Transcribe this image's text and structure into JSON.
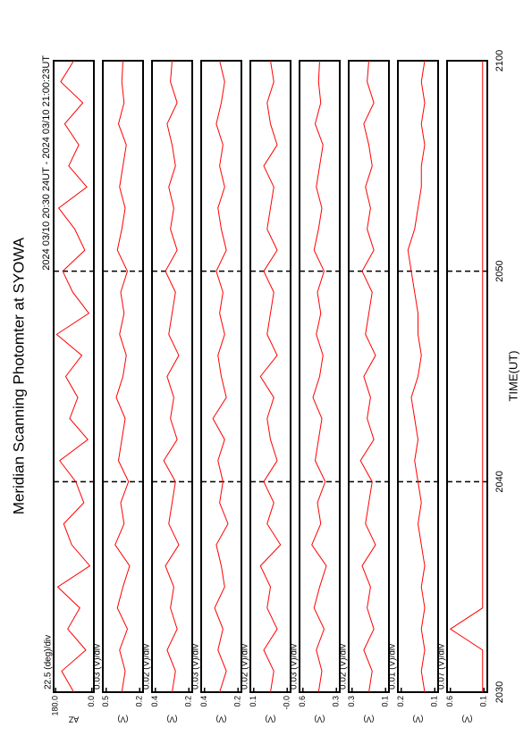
{
  "title": "Meridian Scanning Photomter at SYOWA",
  "time_range": "2024 03/10 20:30 24UT - 2024 03/10 21:00:23UT",
  "xlabel": "TIME(UT)",
  "xlim": [
    1230,
    1260
  ],
  "xticks": [
    {
      "value": 1230,
      "label": "2030"
    },
    {
      "value": 1240,
      "label": "2040"
    },
    {
      "value": 1250,
      "label": "2050"
    },
    {
      "value": 1260,
      "label": "2100"
    }
  ],
  "x": [
    1230,
    1231,
    1232,
    1233,
    1234,
    1235,
    1236,
    1237,
    1238,
    1239,
    1240,
    1241,
    1242,
    1243,
    1244,
    1245,
    1246,
    1247,
    1248,
    1249,
    1250,
    1251,
    1252,
    1253,
    1254,
    1255,
    1256,
    1257,
    1258,
    1259,
    1260
  ],
  "chart_data": [
    {
      "type": "line",
      "scale_label": "22.5 (deg)/div",
      "ylabel": "AZ",
      "ylim": [
        -10,
        190
      ],
      "yticks": [
        {
          "value": 180,
          "label": "180.0"
        },
        {
          "value": 0,
          "label": "0.0"
        }
      ],
      "series": [
        {
          "color": "#ff0000",
          "values": [
            90,
            150,
            30,
            120,
            60,
            170,
            10,
            100,
            140,
            40,
            80,
            160,
            20,
            110,
            70,
            130,
            50,
            175,
            15,
            95,
            145,
            35,
            85,
            165,
            25,
            115,
            65,
            135,
            45,
            155,
            90
          ]
        }
      ]
    },
    {
      "type": "line",
      "scale_label": "0.03 (V)/div",
      "ylabel": "(V)",
      "ylim": [
        0.17,
        0.53
      ],
      "yticks": [
        0.5,
        0.2
      ],
      "series": [
        {
          "color": "#ff0000",
          "values": [
            0.36,
            0.33,
            0.38,
            0.31,
            0.4,
            0.35,
            0.29,
            0.42,
            0.34,
            0.37,
            0.3,
            0.39,
            0.36,
            0.33,
            0.41,
            0.35,
            0.32,
            0.38,
            0.34,
            0.37,
            0.31,
            0.4,
            0.36,
            0.33,
            0.38,
            0.35,
            0.32,
            0.39,
            0.34,
            0.36,
            0.35
          ]
        }
      ]
    },
    {
      "type": "line",
      "scale_label": "0.02 (V)/div",
      "ylabel": "(V)",
      "ylim": [
        0.18,
        0.42
      ],
      "yticks": [
        0.4,
        0.2
      ],
      "series": [
        {
          "color": "#ff0000",
          "values": [
            0.3,
            0.28,
            0.33,
            0.27,
            0.31,
            0.29,
            0.34,
            0.26,
            0.32,
            0.3,
            0.28,
            0.35,
            0.27,
            0.31,
            0.29,
            0.33,
            0.26,
            0.32,
            0.3,
            0.28,
            0.34,
            0.27,
            0.31,
            0.29,
            0.32,
            0.28,
            0.3,
            0.33,
            0.27,
            0.31,
            0.3
          ]
        }
      ]
    },
    {
      "type": "line",
      "scale_label": "0.03 (V)/div",
      "ylabel": "(V)",
      "ylim": [
        0.18,
        0.42
      ],
      "yticks": [
        0.4,
        0.2
      ],
      "series": [
        {
          "color": "#ff0000",
          "values": [
            0.31,
            0.27,
            0.32,
            0.29,
            0.34,
            0.28,
            0.3,
            0.33,
            0.26,
            0.31,
            0.29,
            0.32,
            0.28,
            0.35,
            0.27,
            0.3,
            0.32,
            0.28,
            0.31,
            0.29,
            0.33,
            0.27,
            0.3,
            0.32,
            0.28,
            0.31,
            0.29,
            0.33,
            0.3,
            0.28,
            0.31
          ]
        }
      ]
    },
    {
      "type": "line",
      "scale_label": "0.02 (V)/div",
      "ylabel": "(V)",
      "ylim": [
        -0.01,
        0.11
      ],
      "yticks": [
        0.1,
        {
          "value": 0,
          "label": "-0.0"
        }
      ],
      "series": [
        {
          "color": "#ff0000",
          "values": [
            0.05,
            0.04,
            0.07,
            0.03,
            0.06,
            0.05,
            0.08,
            0.02,
            0.06,
            0.04,
            0.07,
            0.03,
            0.05,
            0.06,
            0.04,
            0.08,
            0.03,
            0.06,
            0.05,
            0.04,
            0.07,
            0.03,
            0.06,
            0.05,
            0.04,
            0.07,
            0.03,
            0.05,
            0.06,
            0.04,
            0.05
          ]
        }
      ]
    },
    {
      "type": "line",
      "scale_label": "0.03 (V)/div",
      "ylabel": "(V)",
      "ylim": [
        0.27,
        0.63
      ],
      "yticks": [
        0.6,
        0.3
      ],
      "series": [
        {
          "color": "#ff0000",
          "values": [
            0.46,
            0.43,
            0.48,
            0.41,
            0.5,
            0.45,
            0.39,
            0.52,
            0.44,
            0.47,
            0.4,
            0.49,
            0.46,
            0.43,
            0.51,
            0.45,
            0.42,
            0.48,
            0.44,
            0.47,
            0.41,
            0.5,
            0.46,
            0.43,
            0.48,
            0.45,
            0.42,
            0.49,
            0.44,
            0.46,
            0.45
          ]
        }
      ]
    },
    {
      "type": "line",
      "scale_label": "0.02 (V)/div",
      "ylabel": "(V)",
      "ylim": [
        0.08,
        0.32
      ],
      "yticks": [
        0.3,
        0.1
      ],
      "series": [
        {
          "color": "#ff0000",
          "values": [
            0.2,
            0.18,
            0.23,
            0.17,
            0.21,
            0.19,
            0.24,
            0.16,
            0.22,
            0.2,
            0.18,
            0.25,
            0.17,
            0.21,
            0.19,
            0.23,
            0.16,
            0.22,
            0.2,
            0.18,
            0.24,
            0.17,
            0.21,
            0.19,
            0.22,
            0.18,
            0.2,
            0.23,
            0.17,
            0.21,
            0.2
          ]
        }
      ]
    },
    {
      "type": "line",
      "scale_label": "0.01 (V)/div",
      "ylabel": "(V)",
      "ylim": [
        0.09,
        0.21
      ],
      "yticks": [
        0.2,
        0.1
      ],
      "series": [
        {
          "color": "#ff0000",
          "values": [
            0.13,
            0.14,
            0.13,
            0.14,
            0.13,
            0.14,
            0.13,
            0.14,
            0.15,
            0.14,
            0.15,
            0.16,
            0.15,
            0.16,
            0.17,
            0.15,
            0.14,
            0.15,
            0.15,
            0.16,
            0.17,
            0.18,
            0.16,
            0.15,
            0.14,
            0.14,
            0.13,
            0.14,
            0.13,
            0.14,
            0.13
          ]
        }
      ]
    },
    {
      "type": "line",
      "scale_label": "0.07 (V)/div",
      "ylabel": "(V)",
      "ylim": [
        0.05,
        0.65
      ],
      "yticks": [
        0.6,
        0.1
      ],
      "series": [
        {
          "color": "#ff0000",
          "values": [
            0.12,
            0.12,
            0.12,
            0.6,
            0.12,
            0.12,
            0.12,
            0.12,
            0.12,
            0.12,
            0.12,
            0.12,
            0.12,
            0.12,
            0.12,
            0.12,
            0.12,
            0.12,
            0.12,
            0.12,
            0.12,
            0.12,
            0.12,
            0.12,
            0.12,
            0.12,
            0.12,
            0.12,
            0.12,
            0.12,
            0.12
          ]
        }
      ]
    }
  ]
}
